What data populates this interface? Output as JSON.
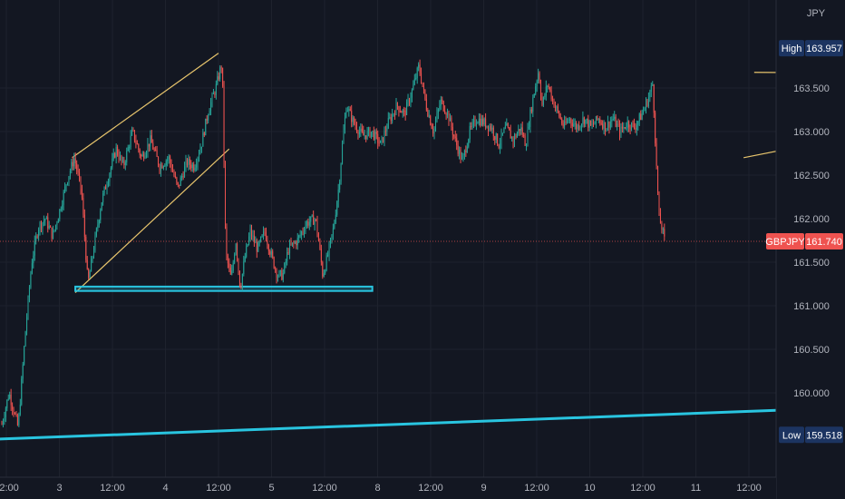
{
  "chart_data": {
    "type": "candlestick",
    "symbol": "GBPJPY",
    "currency": "JPY",
    "y_range": [
      158.8,
      164.65
    ],
    "x_ticks": [
      "12:00",
      "3",
      "12:00",
      "4",
      "12:00",
      "5",
      "12:00",
      "8",
      "12:00",
      "9",
      "12:00",
      "10",
      "12:00",
      "11",
      "12:00"
    ],
    "y_ticks": [
      "163.500",
      "163.000",
      "162.500",
      "162.000",
      "161.500",
      "161.000",
      "160.500",
      "160.000"
    ],
    "y_tick_values": [
      163.5,
      163.0,
      162.5,
      162.0,
      161.5,
      161.0,
      160.5,
      160.0
    ],
    "last_price": 161.74,
    "last_price_label": "161.740",
    "high": {
      "label": "High",
      "value": "163.957"
    },
    "low": {
      "label": "Low",
      "value": "159.518"
    },
    "grid": true,
    "candles_up_color": "#26a69a",
    "candles_down_color": "#ef5350",
    "price_path": [
      [
        0,
        159.55
      ],
      [
        10,
        160.0
      ],
      [
        20,
        159.6
      ],
      [
        28,
        160.7
      ],
      [
        35,
        161.5
      ],
      [
        42,
        161.9
      ],
      [
        50,
        162.0
      ],
      [
        58,
        161.8
      ],
      [
        66,
        162.1
      ],
      [
        74,
        162.45
      ],
      [
        82,
        162.7
      ],
      [
        90,
        162.3
      ],
      [
        97,
        161.25
      ],
      [
        104,
        161.7
      ],
      [
        112,
        162.2
      ],
      [
        120,
        162.5
      ],
      [
        128,
        162.8
      ],
      [
        136,
        162.6
      ],
      [
        146,
        163.0
      ],
      [
        156,
        162.7
      ],
      [
        166,
        162.9
      ],
      [
        176,
        162.6
      ],
      [
        186,
        162.7
      ],
      [
        196,
        162.35
      ],
      [
        206,
        162.65
      ],
      [
        214,
        162.6
      ],
      [
        222,
        162.85
      ],
      [
        230,
        163.25
      ],
      [
        238,
        163.5
      ],
      [
        245,
        163.8
      ],
      [
        249,
        161.6
      ],
      [
        255,
        161.3
      ],
      [
        260,
        161.75
      ],
      [
        265,
        161.2
      ],
      [
        270,
        161.55
      ],
      [
        276,
        161.85
      ],
      [
        284,
        161.65
      ],
      [
        292,
        161.85
      ],
      [
        300,
        161.55
      ],
      [
        306,
        161.35
      ],
      [
        312,
        161.35
      ],
      [
        318,
        161.65
      ],
      [
        328,
        161.75
      ],
      [
        338,
        161.95
      ],
      [
        348,
        162.0
      ],
      [
        352,
        161.7
      ],
      [
        356,
        161.35
      ],
      [
        362,
        161.6
      ],
      [
        368,
        161.9
      ],
      [
        374,
        162.4
      ],
      [
        378,
        162.9
      ],
      [
        382,
        163.3
      ],
      [
        390,
        163.1
      ],
      [
        400,
        162.95
      ],
      [
        410,
        163.0
      ],
      [
        420,
        162.85
      ],
      [
        428,
        163.1
      ],
      [
        438,
        163.3
      ],
      [
        446,
        163.2
      ],
      [
        454,
        163.45
      ],
      [
        462,
        163.75
      ],
      [
        470,
        163.3
      ],
      [
        478,
        163.0
      ],
      [
        486,
        163.35
      ],
      [
        494,
        163.2
      ],
      [
        502,
        162.9
      ],
      [
        510,
        162.65
      ],
      [
        518,
        163.0
      ],
      [
        526,
        163.15
      ],
      [
        534,
        163.1
      ],
      [
        542,
        163.05
      ],
      [
        550,
        162.85
      ],
      [
        558,
        163.05
      ],
      [
        566,
        162.9
      ],
      [
        574,
        163.05
      ],
      [
        580,
        162.85
      ],
      [
        584,
        163.15
      ],
      [
        590,
        163.5
      ],
      [
        594,
        163.7
      ],
      [
        598,
        163.3
      ],
      [
        604,
        163.55
      ],
      [
        610,
        163.35
      ],
      [
        616,
        163.2
      ],
      [
        622,
        163.05
      ],
      [
        628,
        163.15
      ],
      [
        636,
        163.05
      ],
      [
        644,
        163.15
      ],
      [
        652,
        163.05
      ],
      [
        660,
        163.15
      ],
      [
        668,
        163.05
      ],
      [
        676,
        163.15
      ],
      [
        684,
        163.0
      ],
      [
        692,
        163.1
      ],
      [
        700,
        163.05
      ],
      [
        708,
        163.2
      ],
      [
        714,
        163.35
      ],
      [
        720,
        163.55
      ],
      [
        724,
        162.6
      ],
      [
        727,
        162.0
      ],
      [
        730,
        161.9
      ],
      [
        733,
        161.74
      ]
    ]
  },
  "axis": {
    "currency_label": "JPY"
  },
  "drawings": {
    "lines": [
      {
        "p1": [
          3.12,
          162.7
        ],
        "p2": [
          4.5,
          163.9
        ],
        "color": "#e8c56d"
      },
      {
        "p1": [
          3.15,
          161.15
        ],
        "p2": [
          4.6,
          162.8
        ],
        "color": "#e8c56d"
      },
      {
        "p1": [
          9.45,
          162.7
        ],
        "p2": [
          10.9,
          163.05
        ],
        "color": "#e8c56d"
      },
      {
        "p1": [
          9.55,
          163.68
        ],
        "p2": [
          10.95,
          163.67
        ],
        "color": "#e8c56d"
      },
      {
        "p1": [
          2.0,
          159.45
        ],
        "p2": [
          10.45,
          159.83
        ],
        "color": "#29c5e0"
      }
    ],
    "support_zone": {
      "from": [
        3.15,
        161.22
      ],
      "to": [
        5.95,
        161.17
      ],
      "color": "#29c5e0"
    },
    "small_box": {
      "from": [
        9.86,
        163.25
      ],
      "to": [
        10.0,
        163.02
      ],
      "color": "#e8c56d"
    }
  }
}
